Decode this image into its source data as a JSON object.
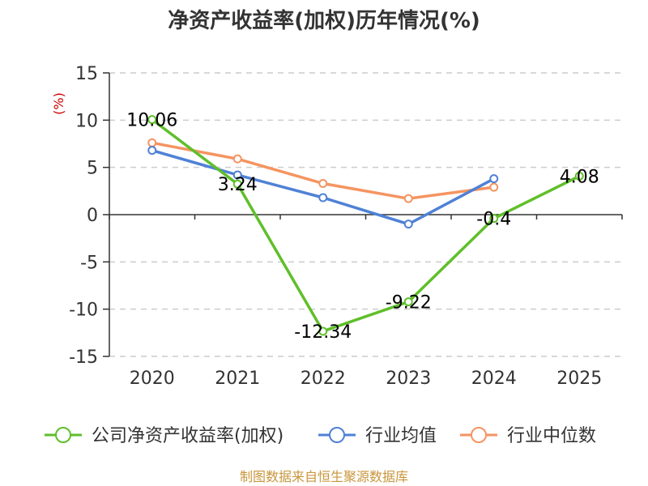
{
  "chart_data": {
    "type": "line",
    "title": "净资产收益率(加权)历年情况(%)",
    "ylabel": "(%)",
    "xlabel": "",
    "categories": [
      "2020",
      "2021",
      "2022",
      "2023",
      "2024",
      "2025"
    ],
    "ylim": [
      -15,
      15
    ],
    "yticks": [
      15,
      10,
      5,
      0,
      -5,
      -10,
      -15
    ],
    "grid": true,
    "legend_position": "bottom",
    "series": [
      {
        "name": "公司净资产收益率(加权)",
        "color": "#5fbf2a",
        "values": [
          10.06,
          3.24,
          -12.34,
          -9.22,
          -0.4,
          4.08
        ],
        "labels": [
          "10.06",
          "3.24",
          "-12.34",
          "-9.22",
          "-0.4",
          "4.08"
        ]
      },
      {
        "name": "行业均值",
        "color": "#4f81d6",
        "values": [
          6.8,
          4.2,
          1.8,
          -1.0,
          3.8,
          null
        ]
      },
      {
        "name": "行业中位数",
        "color": "#f59461",
        "values": [
          7.6,
          5.9,
          3.3,
          1.7,
          2.9,
          null
        ]
      }
    ]
  },
  "source": "制图数据来自恒生聚源数据库"
}
